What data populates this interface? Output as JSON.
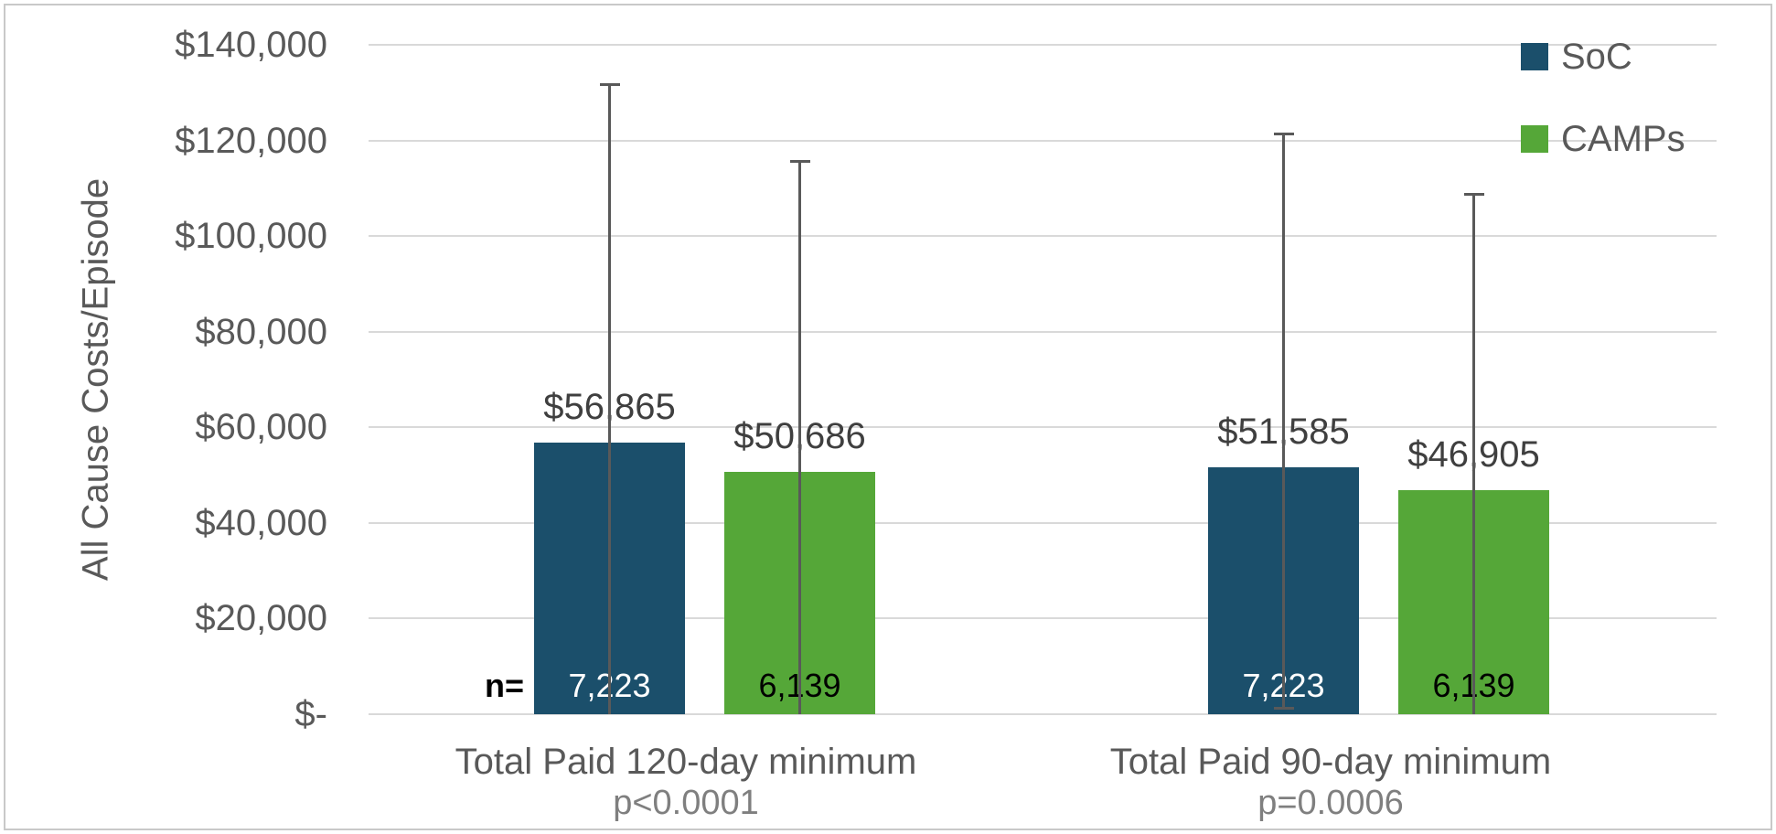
{
  "figure": {
    "n_prefix": "n="
  },
  "chart_data": {
    "type": "bar",
    "title": "",
    "ylabel": "All Cause Costs/Episode",
    "ylim": [
      0,
      140000
    ],
    "grid": true,
    "legend_position": "top-right",
    "error_bar_color": "#595959",
    "yticks": [
      {
        "value": 140000,
        "label": "$140,000"
      },
      {
        "value": 120000,
        "label": "$120,000"
      },
      {
        "value": 100000,
        "label": "$100,000"
      },
      {
        "value": 80000,
        "label": "$80,000"
      },
      {
        "value": 60000,
        "label": "$60,000"
      },
      {
        "value": 40000,
        "label": "$40,000"
      },
      {
        "value": 20000,
        "label": "$20,000"
      },
      {
        "value": 0,
        "label": "$-"
      }
    ],
    "categories": [
      {
        "label": "Total Paid 120-day minimum",
        "pvalue": "p<0.0001"
      },
      {
        "label": "Total Paid 90-day minimum",
        "pvalue": "p=0.0006"
      }
    ],
    "series": [
      {
        "name": "SoC",
        "color": "#1B4F6B",
        "values": [
          56865,
          51585
        ],
        "value_labels": [
          "$56,865",
          "$51,585"
        ],
        "n_labels": [
          "7,223",
          "7,223"
        ],
        "error_top": [
          131800,
          121500
        ],
        "error_bottom": [
          0,
          1300
        ]
      },
      {
        "name": "CAMPs",
        "color": "#55A738",
        "values": [
          50686,
          46905
        ],
        "value_labels": [
          "$50,686",
          "$46,905"
        ],
        "n_labels": [
          "6,139",
          "6,139"
        ],
        "error_top": [
          115700,
          108900
        ],
        "error_bottom": [
          0,
          0
        ]
      }
    ]
  }
}
